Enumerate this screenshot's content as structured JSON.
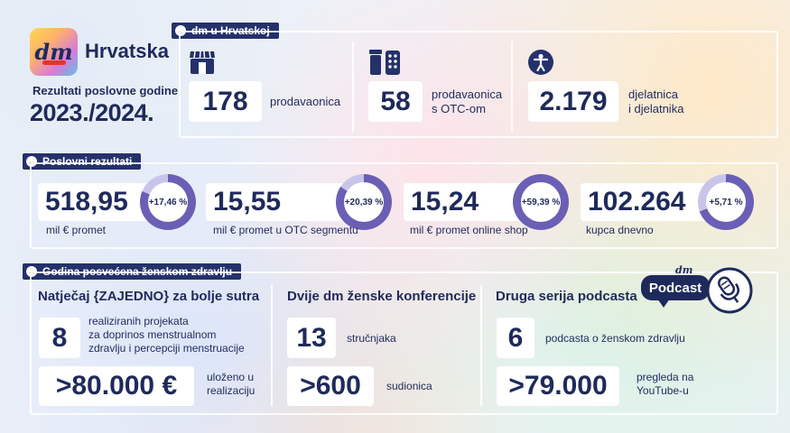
{
  "brand": {
    "logo_text": "dm",
    "country": "Hrvatska",
    "subtitle": "Rezultati poslovne godine",
    "year": "2023./2024."
  },
  "dm_hr": {
    "tag": "dm u Hrvatskoj",
    "stats": [
      {
        "icon": "store-icon",
        "value": "178",
        "label_lines": [
          "prodavaonica"
        ]
      },
      {
        "icon": "otc-pharmacy-icon",
        "value": "58",
        "label_lines": [
          "prodavaonica",
          "s OTC-om"
        ]
      },
      {
        "icon": "person-icon",
        "value": "2.179",
        "label_lines": [
          "djelatnica",
          "i djelatnika"
        ]
      }
    ]
  },
  "results": {
    "tag": "Poslovni rezultati",
    "colors": {
      "ring_fill": "#6a5fb5",
      "ring_track": "#c9c5ea",
      "ring_full": "#1f2a5c"
    },
    "items": [
      {
        "value": "518,95",
        "label": "mil € promet",
        "growth": "+17,46 %",
        "growth_pct": 17.46
      },
      {
        "value": "15,55",
        "label": "mil € promet u OTC segmentu",
        "growth": "+20,39 %",
        "growth_pct": 20.39
      },
      {
        "value": "15,24",
        "label": "mil € promet online shop",
        "growth": "+59,39 %",
        "growth_pct": 59.39
      },
      {
        "value": "102.264",
        "label": "kupca dnevno",
        "growth": "+5,71 %",
        "growth_pct": 5.71
      }
    ]
  },
  "womens_health": {
    "tag": "Godina posvećena ženskom zdravlju",
    "columns": [
      {
        "title": "Natječaj {ZAJEDNO} za bolje sutra",
        "stat1": {
          "value": "8",
          "label_lines": [
            "realiziranih projekata",
            "za doprinos menstrualnom",
            "zdravlju i percepciji menstruacije"
          ]
        },
        "stat2": {
          "value": ">80.000 €",
          "label_lines": [
            "uloženo u",
            "realizaciju"
          ]
        }
      },
      {
        "title": "Dvije dm ženske konferencije",
        "stat1": {
          "value": "13",
          "label_lines": [
            "stručnjaka"
          ]
        },
        "stat2": {
          "value": ">600",
          "label_lines": [
            "sudionica"
          ]
        }
      },
      {
        "title": "Druga serija podcasta",
        "stat1": {
          "value": "6",
          "label_lines": [
            "podcasta o ženskom zdravlju"
          ]
        },
        "stat2": {
          "value": ">79.000",
          "label_lines": [
            "pregleda na",
            "YouTube-u"
          ]
        }
      }
    ],
    "podcast_badge": {
      "brand": "dm",
      "text": "Podcast",
      "icon": "microphone-icon"
    }
  }
}
